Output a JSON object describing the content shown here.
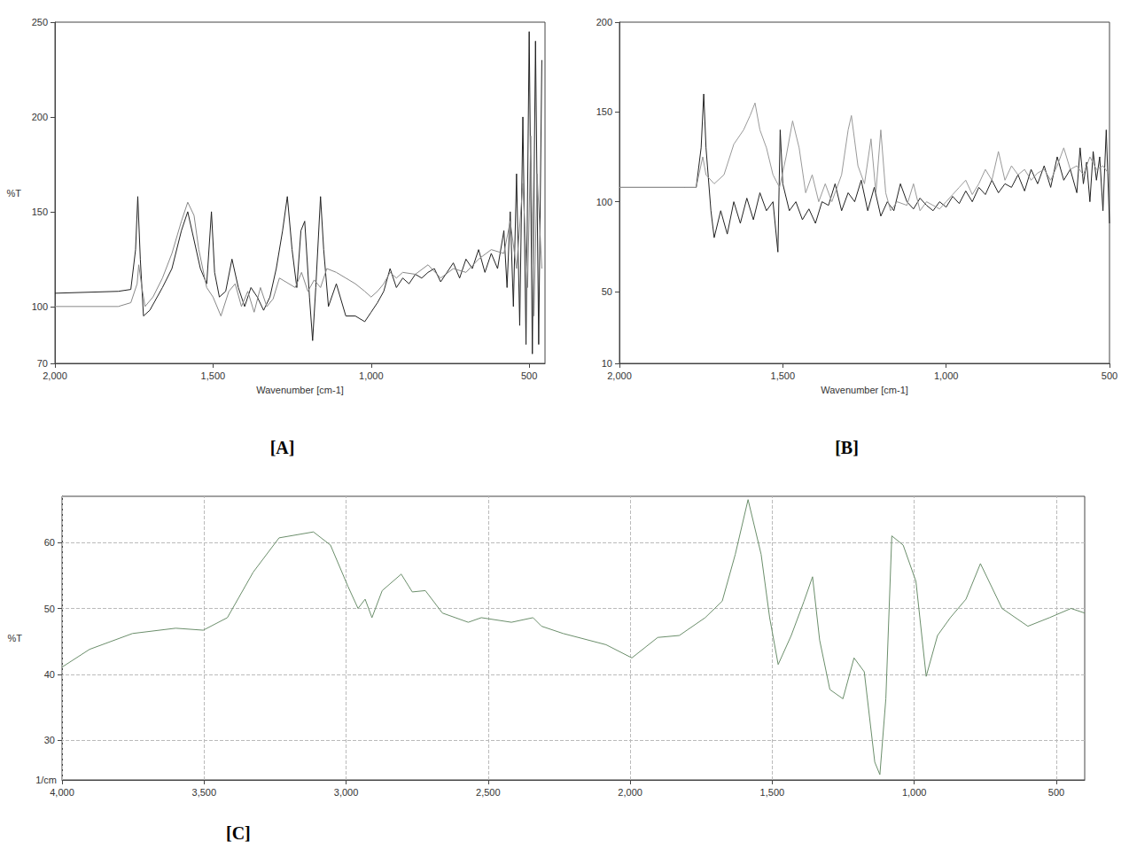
{
  "chart_data": [
    {
      "type": "line",
      "title": "[A]",
      "x_label": "Wavenumber [cm-1]",
      "y_label": "%T",
      "xlim": [
        2000,
        450
      ],
      "ylim": [
        70,
        250
      ],
      "xticks": [
        2000,
        1500,
        1000,
        500
      ],
      "yticks": [
        70,
        100,
        150,
        200,
        250
      ],
      "grid": false,
      "series": [
        {
          "color": "#222222",
          "x": [
            2000,
            1800,
            1760,
            1745,
            1738,
            1730,
            1720,
            1700,
            1660,
            1630,
            1600,
            1580,
            1560,
            1540,
            1520,
            1505,
            1495,
            1480,
            1460,
            1440,
            1420,
            1400,
            1380,
            1360,
            1340,
            1320,
            1300,
            1280,
            1265,
            1250,
            1235,
            1222,
            1210,
            1195,
            1185,
            1175,
            1160,
            1150,
            1135,
            1110,
            1080,
            1050,
            1020,
            1000,
            980,
            960,
            940,
            920,
            900,
            880,
            860,
            840,
            820,
            800,
            780,
            760,
            740,
            720,
            700,
            680,
            660,
            640,
            620,
            600,
            580,
            570,
            560,
            550,
            540,
            530,
            520,
            510,
            500,
            490,
            480,
            470,
            460
          ],
          "values": [
            107,
            108,
            109,
            130,
            158,
            125,
            95,
            98,
            110,
            120,
            140,
            150,
            135,
            120,
            112,
            150,
            118,
            105,
            108,
            125,
            110,
            100,
            110,
            105,
            98,
            105,
            120,
            140,
            158,
            130,
            110,
            140,
            145,
            105,
            82,
            110,
            158,
            130,
            100,
            112,
            95,
            95,
            92,
            97,
            102,
            108,
            120,
            110,
            115,
            112,
            117,
            115,
            118,
            120,
            113,
            118,
            123,
            115,
            125,
            120,
            130,
            118,
            128,
            120,
            140,
            110,
            150,
            100,
            170,
            90,
            200,
            80,
            245,
            75,
            240,
            80,
            230
          ]
        },
        {
          "color": "#888888",
          "x": [
            2000,
            1800,
            1760,
            1740,
            1735,
            1725,
            1715,
            1690,
            1660,
            1630,
            1600,
            1580,
            1560,
            1545,
            1520,
            1500,
            1475,
            1450,
            1430,
            1410,
            1390,
            1370,
            1350,
            1330,
            1310,
            1290,
            1260,
            1240,
            1220,
            1200,
            1180,
            1160,
            1140,
            1110,
            1080,
            1050,
            1020,
            1000,
            980,
            960,
            940,
            920,
            900,
            860,
            820,
            780,
            740,
            700,
            660,
            620,
            580,
            560,
            540,
            520,
            505,
            495,
            485,
            475,
            460
          ],
          "values": [
            100,
            100,
            102,
            112,
            122,
            110,
            100,
            105,
            115,
            128,
            145,
            155,
            148,
            130,
            110,
            105,
            95,
            108,
            112,
            100,
            108,
            97,
            110,
            100,
            104,
            115,
            112,
            110,
            118,
            108,
            114,
            110,
            120,
            118,
            115,
            112,
            108,
            105,
            108,
            112,
            118,
            115,
            118,
            117,
            122,
            115,
            120,
            118,
            125,
            130,
            128,
            145,
            120,
            165,
            110,
            190,
            95,
            170,
            120
          ]
        }
      ]
    },
    {
      "type": "line",
      "title": "[B]",
      "x_label": "Wavenumber [cm-1]",
      "xlim": [
        2000,
        500
      ],
      "ylim": [
        10,
        200
      ],
      "xticks": [
        2000,
        1500,
        1000,
        500
      ],
      "yticks": [
        10,
        50,
        100,
        150,
        200
      ],
      "grid": false,
      "series": [
        {
          "color": "#222222",
          "x": [
            2000,
            1800,
            1765,
            1750,
            1742,
            1735,
            1720,
            1710,
            1690,
            1670,
            1650,
            1630,
            1610,
            1590,
            1570,
            1550,
            1530,
            1515,
            1508,
            1500,
            1480,
            1460,
            1440,
            1420,
            1400,
            1380,
            1360,
            1340,
            1320,
            1300,
            1280,
            1260,
            1240,
            1220,
            1200,
            1180,
            1160,
            1140,
            1120,
            1100,
            1080,
            1060,
            1040,
            1020,
            1000,
            980,
            960,
            940,
            920,
            900,
            880,
            860,
            840,
            820,
            800,
            780,
            760,
            740,
            720,
            700,
            680,
            660,
            640,
            620,
            600,
            590,
            580,
            570,
            560,
            550,
            540,
            530,
            520,
            510,
            500
          ],
          "values": [
            108,
            108,
            108,
            130,
            160,
            130,
            95,
            80,
            95,
            82,
            100,
            88,
            102,
            90,
            105,
            95,
            100,
            72,
            140,
            110,
            95,
            100,
            90,
            96,
            88,
            100,
            98,
            110,
            95,
            105,
            100,
            112,
            95,
            108,
            92,
            100,
            95,
            110,
            100,
            96,
            102,
            98,
            95,
            100,
            97,
            103,
            99,
            106,
            100,
            108,
            104,
            112,
            105,
            110,
            108,
            115,
            106,
            118,
            110,
            120,
            108,
            125,
            112,
            118,
            105,
            130,
            110,
            122,
            100,
            128,
            112,
            125,
            95,
            140,
            88
          ]
        },
        {
          "color": "#999999",
          "x": [
            2000,
            1800,
            1765,
            1745,
            1735,
            1710,
            1680,
            1650,
            1620,
            1600,
            1585,
            1570,
            1550,
            1530,
            1510,
            1490,
            1470,
            1450,
            1430,
            1410,
            1390,
            1370,
            1350,
            1320,
            1300,
            1290,
            1270,
            1250,
            1230,
            1215,
            1200,
            1185,
            1170,
            1150,
            1120,
            1100,
            1080,
            1060,
            1040,
            1020,
            1000,
            980,
            960,
            940,
            920,
            900,
            880,
            860,
            840,
            820,
            800,
            780,
            760,
            740,
            720,
            700,
            680,
            660,
            640,
            620,
            600,
            580,
            560,
            540,
            520,
            500
          ],
          "values": [
            108,
            108,
            108,
            125,
            115,
            110,
            115,
            132,
            140,
            148,
            155,
            140,
            130,
            115,
            108,
            125,
            145,
            130,
            105,
            115,
            100,
            110,
            100,
            115,
            140,
            148,
            120,
            110,
            135,
            105,
            140,
            105,
            95,
            100,
            98,
            110,
            95,
            100,
            98,
            96,
            100,
            104,
            108,
            112,
            104,
            110,
            118,
            112,
            128,
            112,
            120,
            115,
            118,
            112,
            116,
            118,
            112,
            120,
            130,
            118,
            120,
            115,
            125,
            118,
            120,
            115
          ]
        }
      ]
    },
    {
      "type": "line",
      "title": "[C]",
      "x_label": "1/cm",
      "y_label": "%T",
      "xlim": [
        4000,
        400
      ],
      "ylim": [
        24,
        67
      ],
      "xticks": [
        4000,
        3500,
        3000,
        2500,
        2000,
        1500,
        1000,
        500
      ],
      "yticks": [
        30,
        40,
        50,
        60
      ],
      "grid": true,
      "series": [
        {
          "color": "#6b8e6b",
          "x": [
            4000,
            3903,
            3752,
            3600,
            3503,
            3418,
            3327,
            3236,
            3115,
            3055,
            2994,
            2958,
            2933,
            2909,
            2873,
            2806,
            2767,
            2721,
            2661,
            2570,
            2524,
            2418,
            2342,
            2312,
            2236,
            2085,
            1994,
            1903,
            1827,
            1736,
            1676,
            1630,
            1585,
            1539,
            1509,
            1479,
            1433,
            1388,
            1358,
            1333,
            1297,
            1251,
            1212,
            1176,
            1139,
            1121,
            1100,
            1079,
            1039,
            994,
            958,
            918,
            873,
            818,
            767,
            691,
            600,
            524,
            448,
            400
          ],
          "values": [
            41.1,
            43.8,
            46.2,
            47.0,
            46.7,
            48.6,
            55.5,
            60.7,
            61.6,
            59.6,
            53.4,
            50.0,
            51.4,
            48.6,
            52.7,
            55.2,
            52.5,
            52.7,
            49.3,
            47.9,
            48.6,
            47.9,
            48.6,
            47.3,
            46.2,
            44.5,
            42.5,
            45.6,
            45.9,
            48.6,
            51.1,
            58.2,
            66.5,
            58.2,
            48.6,
            41.5,
            45.9,
            51.1,
            54.8,
            45.2,
            37.7,
            36.3,
            42.5,
            40.4,
            26.7,
            24.8,
            36.3,
            61.0,
            59.6,
            54.1,
            39.7,
            45.9,
            48.6,
            51.4,
            56.8,
            50.0,
            47.3,
            48.6,
            50.0,
            49.3
          ]
        }
      ]
    }
  ]
}
